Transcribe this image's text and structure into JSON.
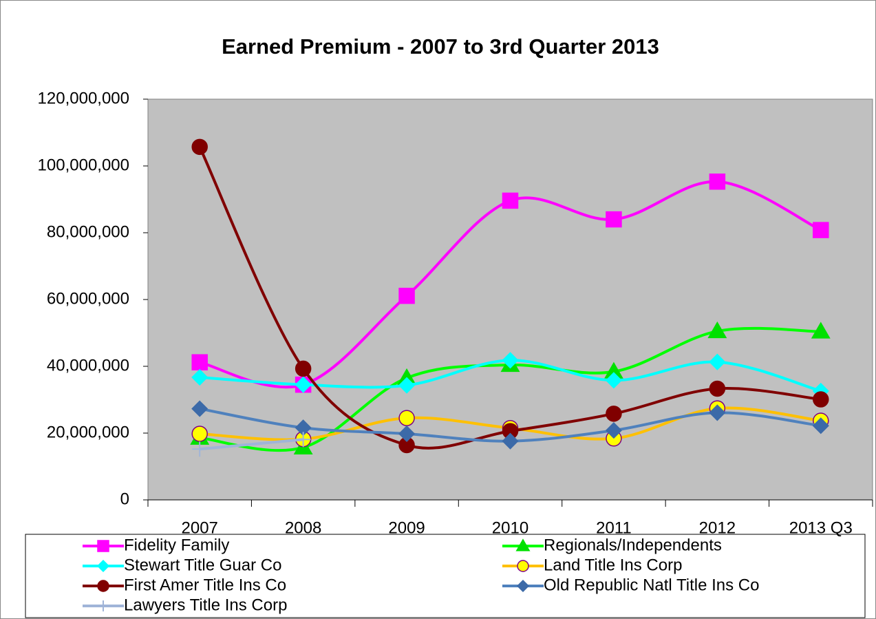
{
  "chart_data": {
    "type": "line",
    "smooth": true,
    "title": "Earned Premium - 2007 to 3rd Quarter 2013",
    "categories": [
      "2007",
      "2008",
      "2009",
      "2010",
      "2011",
      "2012",
      "2013 Q3"
    ],
    "ylim": [
      0,
      120000000
    ],
    "yticks": [
      0,
      {
        "value": 20000000,
        "label": "20,000,000"
      },
      {
        "value": 40000000,
        "label": "40,000,000"
      },
      {
        "value": 60000000,
        "label": "60,000,000"
      },
      {
        "value": 80000000,
        "label": "80,000,000"
      },
      {
        "value": 100000000,
        "label": "100,000,000"
      },
      {
        "value": 120000000,
        "label": "120,000,000"
      }
    ],
    "series": [
      {
        "name": "Fidelity Family",
        "color": "#ff00ff",
        "marker": "square",
        "marker_fill": "#ff00ff",
        "marker_stroke": "#ff00ff",
        "values": [
          41200000,
          34500000,
          61100000,
          89600000,
          84000000,
          95300000,
          80800000
        ]
      },
      {
        "name": "Regionals/Independents",
        "color": "#00ff00",
        "marker": "triangle",
        "marker_fill": "#00e000",
        "marker_stroke": "#00e000",
        "values": [
          18600000,
          15700000,
          36500000,
          40400000,
          38400000,
          50500000,
          50400000
        ]
      },
      {
        "name": "Stewart Title Guar Co",
        "color": "#00ffff",
        "marker": "diamond",
        "marker_fill": "#00ffff",
        "marker_stroke": "#00ffff",
        "values": [
          36700000,
          34500000,
          34300000,
          41800000,
          35800000,
          41300000,
          32600000
        ]
      },
      {
        "name": "Land Title Ins Corp",
        "color": "#ffc000",
        "marker": "circle",
        "marker_fill": "#ffff00",
        "marker_stroke": "#800080",
        "values": [
          19800000,
          18200000,
          24500000,
          21500000,
          18400000,
          27400000,
          23700000
        ]
      },
      {
        "name": "First Amer Title Ins Co",
        "color": "#800000",
        "marker": "circle",
        "marker_fill": "#800000",
        "marker_stroke": "#800000",
        "values": [
          105700000,
          39300000,
          16400000,
          20600000,
          25800000,
          33300000,
          30100000
        ]
      },
      {
        "name": "Old Republic Natl Title Ins Co",
        "color": "#4f81bd",
        "marker": "diamond",
        "marker_fill": "#3c6aa8",
        "marker_stroke": "#3c6aa8",
        "values": [
          27300000,
          21600000,
          19800000,
          17600000,
          20800000,
          26100000,
          22200000
        ]
      },
      {
        "name": "Lawyers Title Ins Corp",
        "color": "#a0b4d8",
        "marker": "plus",
        "marker_fill": "#a0b4d8",
        "marker_stroke": "#a0b4d8",
        "values": [
          15200000,
          18100000,
          null,
          null,
          null,
          null,
          null
        ]
      }
    ]
  }
}
